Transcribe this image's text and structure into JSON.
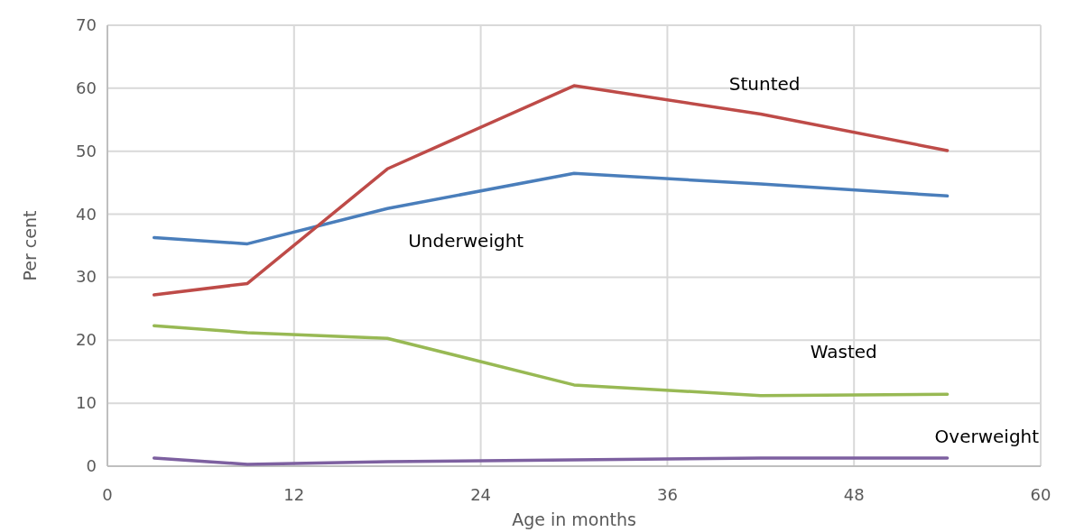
{
  "chart_data": {
    "type": "line",
    "xlabel": "Age in months",
    "ylabel": "Per cent",
    "x": [
      3,
      9,
      18,
      30,
      42,
      54
    ],
    "series": [
      {
        "name": "Underweight",
        "color": "#4a7ebb",
        "values": [
          36.3,
          35.3,
          40.9,
          46.5,
          44.8,
          42.9
        ]
      },
      {
        "name": "Stunted",
        "color": "#be4b48",
        "values": [
          27.2,
          29.0,
          47.2,
          60.4,
          55.9,
          50.1
        ]
      },
      {
        "name": "Wasted",
        "color": "#98b954",
        "values": [
          22.3,
          21.2,
          20.3,
          12.9,
          11.2,
          11.4
        ]
      },
      {
        "name": "Overweight",
        "color": "#7d60a0",
        "values": [
          1.3,
          0.3,
          0.7,
          1.0,
          1.3,
          1.3
        ]
      }
    ],
    "xlim": [
      0,
      60
    ],
    "xticks": [
      0,
      12,
      24,
      36,
      48,
      60
    ],
    "ylim": [
      0,
      70
    ],
    "yticks": [
      0,
      10,
      20,
      30,
      40,
      50,
      60,
      70
    ],
    "grid": true,
    "marker": "none",
    "line_style": "solid"
  }
}
